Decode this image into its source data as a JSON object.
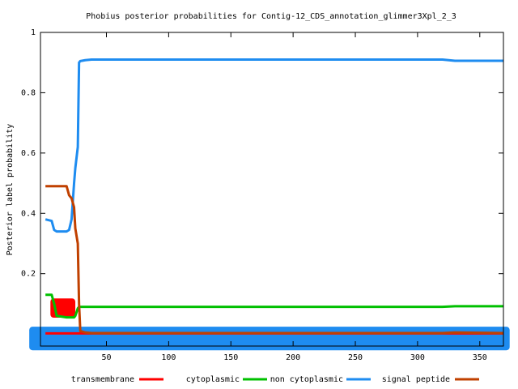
{
  "chart_data": {
    "type": "line",
    "title": "Phobius posterior probabilities for Contig-12_CDS_annotation_glimmer3Xpl_2_3",
    "y_label": "Posterior label probability",
    "x": [
      1,
      6,
      8,
      10,
      18,
      20,
      22,
      24,
      25,
      27,
      28,
      29,
      33,
      38,
      320,
      330,
      369
    ],
    "series": [
      {
        "name": "transmembrane",
        "color": "#ff0000",
        "values": [
          0.002,
          0.002,
          0.002,
          0.002,
          0.002,
          0.002,
          0.002,
          0.002,
          0.002,
          0.002,
          0.002,
          0.002,
          0.002,
          0.002,
          0.002,
          0.002,
          0.002
        ]
      },
      {
        "name": "cytoplasmic",
        "color": "#00c000",
        "values": [
          0.13,
          0.13,
          0.1,
          0.06,
          0.055,
          0.055,
          0.055,
          0.055,
          0.06,
          0.085,
          0.09,
          0.09,
          0.09,
          0.09,
          0.09,
          0.092,
          0.092
        ]
      },
      {
        "name": "non cytoplasmic",
        "color": "#1e8cf0",
        "values": [
          0.38,
          0.375,
          0.345,
          0.34,
          0.34,
          0.345,
          0.38,
          0.5,
          0.55,
          0.62,
          0.9,
          0.905,
          0.908,
          0.91,
          0.91,
          0.906,
          0.906
        ]
      },
      {
        "name": "signal peptide",
        "color": "#c04000",
        "values": [
          0.49,
          0.49,
          0.49,
          0.49,
          0.49,
          0.46,
          0.45,
          0.42,
          0.35,
          0.3,
          0.1,
          0.01,
          0.005,
          0.003,
          0.003,
          0.005,
          0.003
        ]
      }
    ],
    "regions": [
      {
        "color": "#1e8cf0",
        "x": [
          -12,
          374
        ],
        "y": [
          -0.054,
          0.024
        ]
      },
      {
        "color": "#ff0000",
        "x": [
          5,
          25
        ],
        "y": [
          0.054,
          0.118
        ]
      }
    ],
    "xlim": [
      -3,
      369
    ],
    "ylim": [
      -0.04,
      1
    ],
    "xticks": [
      50,
      100,
      150,
      200,
      250,
      300,
      350
    ],
    "yticks": [
      0.2,
      0.4,
      0.6,
      0.8,
      1
    ],
    "legend": "bottom"
  }
}
